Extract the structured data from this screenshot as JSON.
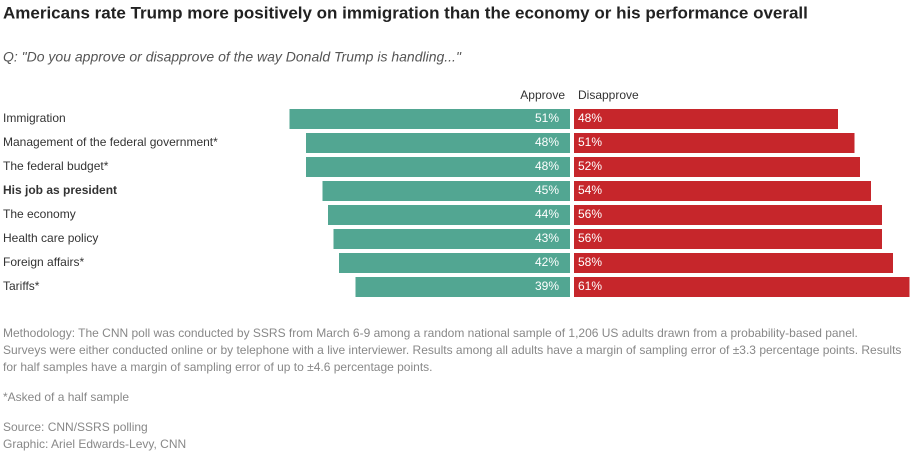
{
  "chart_data": {
    "type": "diverging_bar",
    "title": "Americans rate Trump more positively on immigration than the economy or his performance overall",
    "subtitle": "Q: \"Do you approve or disapprove of the way Donald Trump is handling...\"",
    "categories": [
      "Immigration",
      "Management of the federal government*",
      "The federal budget*",
      "His job as president",
      "The economy",
      "Health care policy",
      "Foreign affairs*",
      "Tariffs*"
    ],
    "bold_categories": [
      3
    ],
    "series": [
      {
        "name": "Approve",
        "color": "#52a692",
        "values": [
          51,
          48,
          48,
          45,
          44,
          43,
          42,
          39
        ],
        "value_labels": [
          "51%",
          "48%",
          "48%",
          "45%",
          "44%",
          "43%",
          "42%",
          "39%"
        ]
      },
      {
        "name": "Disapprove",
        "color": "#c6262b",
        "values": [
          48,
          51,
          52,
          54,
          56,
          56,
          58,
          61
        ],
        "value_labels": [
          "48%",
          "51%",
          "52%",
          "54%",
          "56%",
          "56%",
          "58%",
          "61%"
        ]
      }
    ],
    "methodology": [
      "Methodology: The CNN poll was conducted by SSRS from March 6-9 among a random national sample of 1,206 US adults drawn from a probability-based panel.",
      "Surveys were either conducted online or by telephone with a live interviewer. Results among all adults have a margin of sampling error of ±3.3 percentage points. Results",
      "for half samples have a margin of sampling error of up to ±4.6 percentage points."
    ],
    "note": "*Asked of a half sample",
    "source": "Source: CNN/SSRS polling",
    "credit": "Graphic: Ariel Edwards-Levy, CNN"
  }
}
